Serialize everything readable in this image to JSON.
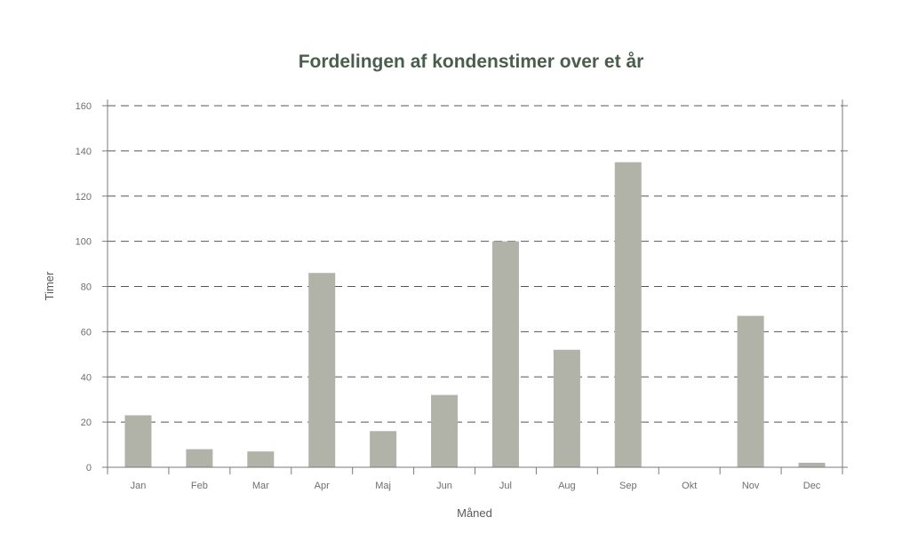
{
  "chart_data": {
    "type": "bar",
    "title": "Fordelingen af kondenstimer over et år",
    "xlabel": "Måned",
    "ylabel": "Timer",
    "categories": [
      "Jan",
      "Feb",
      "Mar",
      "Apr",
      "Maj",
      "Jun",
      "Jul",
      "Aug",
      "Sep",
      "Okt",
      "Nov",
      "Dec"
    ],
    "values": [
      23,
      8,
      7,
      86,
      16,
      32,
      100,
      52,
      135,
      0,
      67,
      2
    ],
    "ylim": [
      0,
      160
    ],
    "yticks": [
      0,
      20,
      40,
      60,
      80,
      100,
      120,
      140,
      160
    ],
    "grid": "horizontal-dashed",
    "colors": {
      "bar": "#b1b3a8",
      "title": "#4a5e4c",
      "grid": "#555555"
    }
  }
}
